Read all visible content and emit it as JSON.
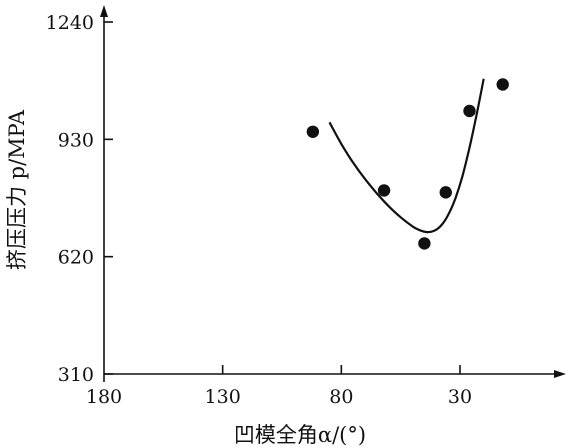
{
  "chart_data": {
    "type": "scatter",
    "title": "",
    "xlabel": "凹模全角α/(°)",
    "ylabel": "挤压压力 p/MPA",
    "x_reversed": true,
    "xlim": [
      180,
      5
    ],
    "ylim": [
      310,
      1240
    ],
    "x_ticks": [
      180,
      130,
      80,
      30
    ],
    "y_ticks": [
      1240,
      930,
      620,
      310
    ],
    "grid": false,
    "legend": "none",
    "series": [
      {
        "kind": "points",
        "x": [
          92,
          62,
          45,
          36,
          26,
          12
        ],
        "y": [
          950,
          795,
          655,
          790,
          1005,
          1075
        ]
      },
      {
        "kind": "fit-curve",
        "x": [
          85,
          80,
          75,
          70,
          65,
          60,
          55,
          50,
          47,
          44,
          41,
          38,
          35,
          32,
          29,
          26,
          23,
          20
        ],
        "y": [
          975,
          918,
          868,
          825,
          787,
          753,
          724,
          700,
          690,
          685,
          688,
          702,
          730,
          773,
          832,
          908,
          995,
          1090
        ]
      }
    ],
    "colors": {
      "ink": "#111111",
      "background": "#ffffff"
    }
  }
}
